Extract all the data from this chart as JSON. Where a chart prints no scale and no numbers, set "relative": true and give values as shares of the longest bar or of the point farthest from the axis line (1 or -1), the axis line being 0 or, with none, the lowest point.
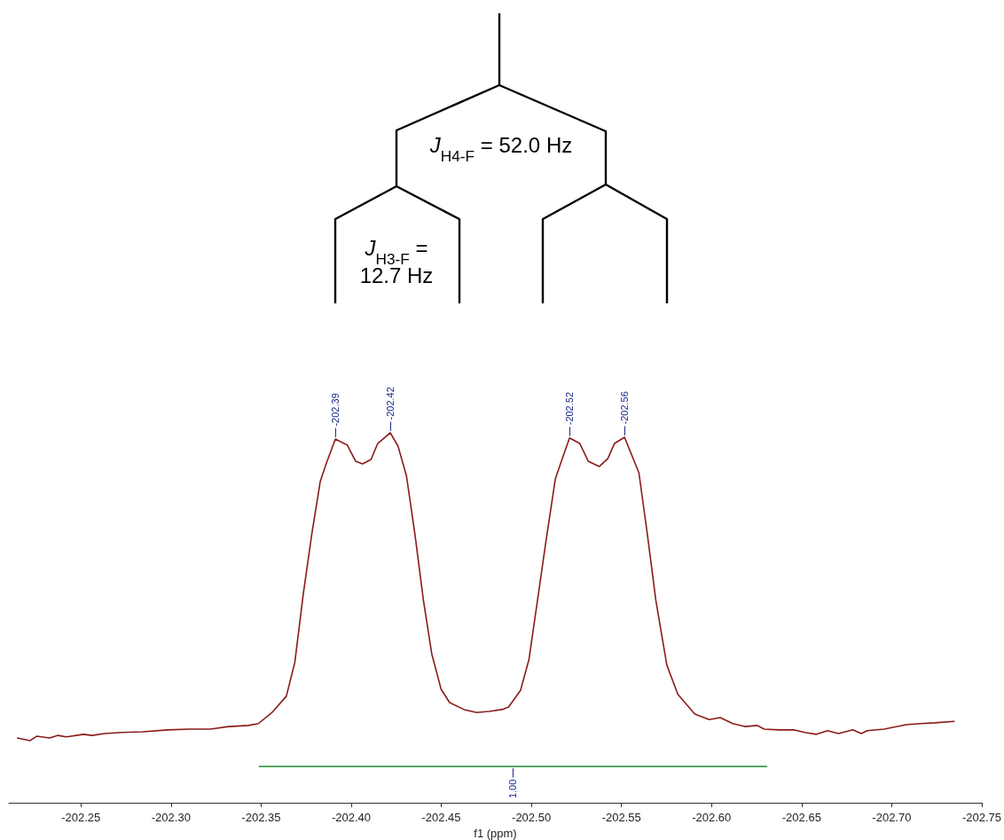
{
  "chart_data": {
    "type": "line",
    "relative": true,
    "xlabel": "f1 (ppm)",
    "marker": "none",
    "line_style": "solid",
    "grid": false,
    "tick_labels": "x",
    "xlim": [
      -202.21,
      -202.75
    ],
    "xticks": [
      {
        "value": -202.25,
        "label": "-202.25"
      },
      {
        "value": -202.3,
        "label": "-202.30"
      },
      {
        "value": -202.35,
        "label": "-202.35"
      },
      {
        "value": -202.4,
        "label": "-202.40"
      },
      {
        "value": -202.45,
        "label": "-202.45"
      },
      {
        "value": -202.5,
        "label": "-202.50"
      },
      {
        "value": -202.55,
        "label": "-202.55"
      },
      {
        "value": -202.6,
        "label": "-202.60"
      },
      {
        "value": -202.65,
        "label": "-202.65"
      },
      {
        "value": -202.7,
        "label": "-202.70"
      },
      {
        "value": -202.75,
        "label": "-202.75"
      }
    ],
    "x": [
      -202.2148,
      -202.2218,
      -202.2256,
      -202.2326,
      -202.2373,
      -202.242,
      -202.2514,
      -202.2561,
      -202.2631,
      -202.2725,
      -202.2843,
      -202.2983,
      -202.3101,
      -202.3218,
      -202.3321,
      -202.3429,
      -202.3485,
      -202.3561,
      -202.364,
      -202.3687,
      -202.3734,
      -202.3781,
      -202.3828,
      -202.3861,
      -202.3912,
      -202.3978,
      -202.4025,
      -202.4063,
      -202.411,
      -202.4147,
      -202.4217,
      -202.426,
      -202.4307,
      -202.4354,
      -202.4401,
      -202.4447,
      -202.4499,
      -202.4546,
      -202.4626,
      -202.4696,
      -202.4767,
      -202.4837,
      -202.4874,
      -202.494,
      -202.4987,
      -202.5034,
      -202.5081,
      -202.5133,
      -202.5175,
      -202.5212,
      -202.5269,
      -202.5316,
      -202.5377,
      -202.5424,
      -202.5461,
      -202.5517,
      -202.5597,
      -202.5644,
      -202.5691,
      -202.5752,
      -202.5813,
      -202.5907,
      -202.5987,
      -202.6048,
      -202.6118,
      -202.6184,
      -202.6254,
      -202.6292,
      -202.6376,
      -202.6456,
      -202.6517,
      -202.6583,
      -202.6644,
      -202.6705,
      -202.6784,
      -202.6831,
      -202.6864,
      -202.6958,
      -202.708,
      -202.716,
      -202.724,
      -202.7347
    ],
    "series": [
      {
        "color": "#8b1a1a",
        "values": [
          0.175,
          0.168,
          0.18,
          0.175,
          0.182,
          0.178,
          0.185,
          0.182,
          0.187,
          0.19,
          0.192,
          0.197,
          0.199,
          0.199,
          0.206,
          0.209,
          0.214,
          0.244,
          0.288,
          0.379,
          0.564,
          0.725,
          0.868,
          0.916,
          0.983,
          0.967,
          0.923,
          0.916,
          0.928,
          0.971,
          1.0,
          0.964,
          0.883,
          0.725,
          0.547,
          0.403,
          0.307,
          0.271,
          0.252,
          0.244,
          0.247,
          0.252,
          0.259,
          0.304,
          0.388,
          0.547,
          0.707,
          0.875,
          0.935,
          0.986,
          0.971,
          0.923,
          0.909,
          0.93,
          0.971,
          0.988,
          0.892,
          0.725,
          0.547,
          0.372,
          0.293,
          0.24,
          0.225,
          0.23,
          0.214,
          0.206,
          0.209,
          0.199,
          0.197,
          0.197,
          0.19,
          0.185,
          0.195,
          0.187,
          0.197,
          0.187,
          0.195,
          0.199,
          0.211,
          0.214,
          0.216,
          0.22
        ]
      },
      {
        "type": "line",
        "color": "#3c9a48",
        "x": [
          -202.349,
          -202.6306
        ],
        "values": [
          0.098,
          0.098
        ]
      }
    ],
    "annotations": [
      "J$_{H4-F}$ = 52.0 Hz",
      "J$_{H3-F}$ =\n12.7 Hz",
      {
        "text": "1.00",
        "x": -202.4898,
        "y": 0.098
      },
      {
        "text": "-202.39",
        "x": -202.3912,
        "y": 0.983
      },
      {
        "text": "-202.42",
        "x": -202.4217,
        "y": 1.0
      },
      {
        "text": "-202.52",
        "x": -202.5212,
        "y": 0.986
      },
      {
        "text": "-202.56",
        "x": -202.5517,
        "y": 0.988
      }
    ]
  }
}
